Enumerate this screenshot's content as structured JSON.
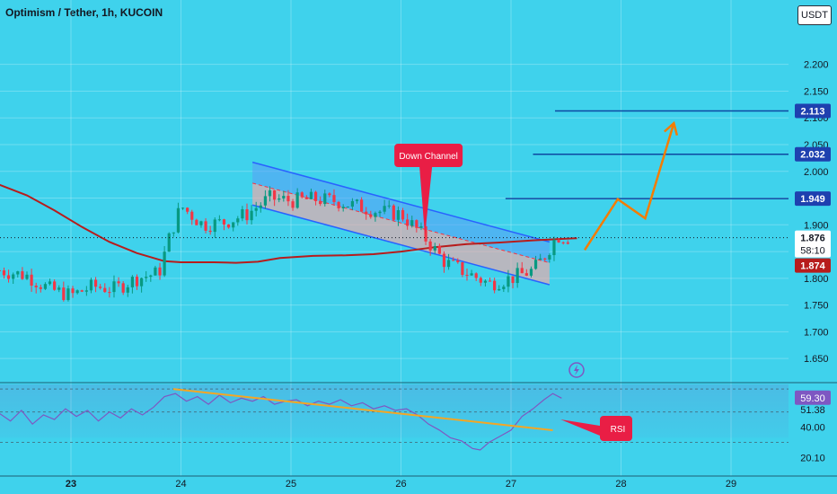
{
  "header": {
    "title": "Optimism / Tether, 1h, KUCOIN",
    "currency": "USDT"
  },
  "colors": {
    "background": "#3fd2ec",
    "bull": "#089981",
    "bear": "#f23645",
    "ma": "#b71c1c",
    "channel_outer": "#2962ff",
    "channel_fill_blue": "#5b9cf6",
    "channel_fill_red": "#f7a9a8",
    "projection": "#f57c00",
    "level_line": "#0d47a1",
    "rsi_line": "#7e57c2",
    "trendline": "#f5a623",
    "callout": "#e91e45"
  },
  "chart_data": [
    {
      "type": "candlestick",
      "x_ticks": [
        "23",
        "24",
        "25",
        "26",
        "27",
        "28",
        "29"
      ],
      "y_ticks": [
        "2.200",
        "2.150",
        "2.100",
        "2.050",
        "2.000",
        "1.950",
        "1.900",
        "1.850",
        "1.800",
        "1.750",
        "1.700",
        "1.650"
      ],
      "ylim": [
        1.615,
        2.27
      ],
      "x_range_days": [
        22.35,
        29.85
      ],
      "price_labels": {
        "target_3": "2.113",
        "target_2": "2.032",
        "target_1": "1.949",
        "last_price": "1.876",
        "countdown": "58:10",
        "ma_value": "1.874"
      },
      "levels": [
        {
          "name": "target_3",
          "value": 2.113,
          "from_day": 27.4
        },
        {
          "name": "target_2",
          "value": 2.032,
          "from_day": 27.2
        },
        {
          "name": "target_1",
          "value": 1.949,
          "from_day": 26.95
        }
      ],
      "annotations": {
        "channel_label": "Down Channel"
      },
      "channel": {
        "upper": [
          [
            24.65,
            2.017
          ],
          [
            27.35,
            1.868
          ]
        ],
        "middle": [
          [
            24.65,
            1.978
          ],
          [
            27.35,
            1.829
          ]
        ],
        "lower": [
          [
            24.65,
            1.937
          ],
          [
            27.35,
            1.788
          ]
        ]
      },
      "moving_average": [
        [
          22.35,
          1.975
        ],
        [
          22.6,
          1.955
        ],
        [
          22.85,
          1.927
        ],
        [
          23.1,
          1.896
        ],
        [
          23.35,
          1.868
        ],
        [
          23.6,
          1.847
        ],
        [
          23.85,
          1.832
        ],
        [
          24.0,
          1.83
        ],
        [
          24.3,
          1.83
        ],
        [
          24.5,
          1.829
        ],
        [
          24.7,
          1.831
        ],
        [
          24.9,
          1.838
        ],
        [
          25.2,
          1.842
        ],
        [
          25.5,
          1.843
        ],
        [
          25.75,
          1.845
        ],
        [
          26.0,
          1.85
        ],
        [
          26.3,
          1.858
        ],
        [
          26.6,
          1.864
        ],
        [
          26.9,
          1.867
        ],
        [
          27.2,
          1.871
        ],
        [
          27.5,
          1.874
        ],
        [
          27.6,
          1.875
        ]
      ],
      "projection_path": [
        [
          27.67,
          1.853
        ],
        [
          27.97,
          1.948
        ],
        [
          28.22,
          1.912
        ],
        [
          28.48,
          2.09
        ]
      ],
      "candles_summary": {
        "open_first": 1.815,
        "key_points": [
          [
            22.35,
            1.815
          ],
          [
            22.6,
            1.805
          ],
          [
            22.8,
            1.78
          ],
          [
            23.0,
            1.768
          ],
          [
            23.2,
            1.785
          ],
          [
            23.4,
            1.78
          ],
          [
            23.6,
            1.8
          ],
          [
            23.8,
            1.81
          ],
          [
            23.9,
            1.88
          ],
          [
            24.0,
            1.935
          ],
          [
            24.2,
            1.9
          ],
          [
            24.4,
            1.905
          ],
          [
            24.6,
            1.92
          ],
          [
            24.8,
            1.95
          ],
          [
            25.0,
            1.945
          ],
          [
            25.2,
            1.948
          ],
          [
            25.4,
            1.945
          ],
          [
            25.6,
            1.935
          ],
          [
            25.8,
            1.925
          ],
          [
            26.0,
            1.92
          ],
          [
            26.2,
            1.88
          ],
          [
            26.4,
            1.83
          ],
          [
            26.6,
            1.81
          ],
          [
            26.8,
            1.79
          ],
          [
            27.0,
            1.8
          ],
          [
            27.2,
            1.815
          ],
          [
            27.3,
            1.84
          ],
          [
            27.42,
            1.88
          ],
          [
            27.52,
            1.876
          ]
        ]
      }
    },
    {
      "type": "line",
      "name": "RSI",
      "ylim": [
        15,
        68
      ],
      "y_ticks": [
        "59.30",
        "51.38",
        "40.00",
        "20.10"
      ],
      "bands": [
        30,
        50,
        70
      ],
      "callout_label": "RSI",
      "values": [
        [
          22.35,
          49
        ],
        [
          22.45,
          44
        ],
        [
          22.55,
          51
        ],
        [
          22.65,
          42
        ],
        [
          22.75,
          48
        ],
        [
          22.85,
          45
        ],
        [
          22.95,
          52
        ],
        [
          23.05,
          47
        ],
        [
          23.15,
          51
        ],
        [
          23.25,
          44
        ],
        [
          23.35,
          50
        ],
        [
          23.45,
          46
        ],
        [
          23.55,
          52
        ],
        [
          23.65,
          48
        ],
        [
          23.75,
          53
        ],
        [
          23.85,
          60
        ],
        [
          23.95,
          62
        ],
        [
          24.05,
          57
        ],
        [
          24.15,
          60
        ],
        [
          24.25,
          55
        ],
        [
          24.35,
          61
        ],
        [
          24.45,
          56
        ],
        [
          24.55,
          59
        ],
        [
          24.65,
          57
        ],
        [
          24.75,
          60
        ],
        [
          24.85,
          55
        ],
        [
          24.95,
          57
        ],
        [
          25.05,
          58
        ],
        [
          25.15,
          54
        ],
        [
          25.25,
          57
        ],
        [
          25.35,
          55
        ],
        [
          25.45,
          58
        ],
        [
          25.55,
          54
        ],
        [
          25.65,
          56
        ],
        [
          25.75,
          52
        ],
        [
          25.85,
          54
        ],
        [
          25.95,
          51
        ],
        [
          26.05,
          52
        ],
        [
          26.15,
          48
        ],
        [
          26.25,
          42
        ],
        [
          26.35,
          38
        ],
        [
          26.45,
          33
        ],
        [
          26.55,
          31
        ],
        [
          26.65,
          26
        ],
        [
          26.72,
          25
        ],
        [
          26.8,
          30
        ],
        [
          26.9,
          34
        ],
        [
          27.0,
          38
        ],
        [
          27.1,
          47
        ],
        [
          27.2,
          52
        ],
        [
          27.3,
          58
        ],
        [
          27.38,
          62
        ],
        [
          27.46,
          59
        ]
      ],
      "trendline": [
        [
          23.93,
          65
        ],
        [
          27.38,
          38
        ]
      ]
    }
  ]
}
